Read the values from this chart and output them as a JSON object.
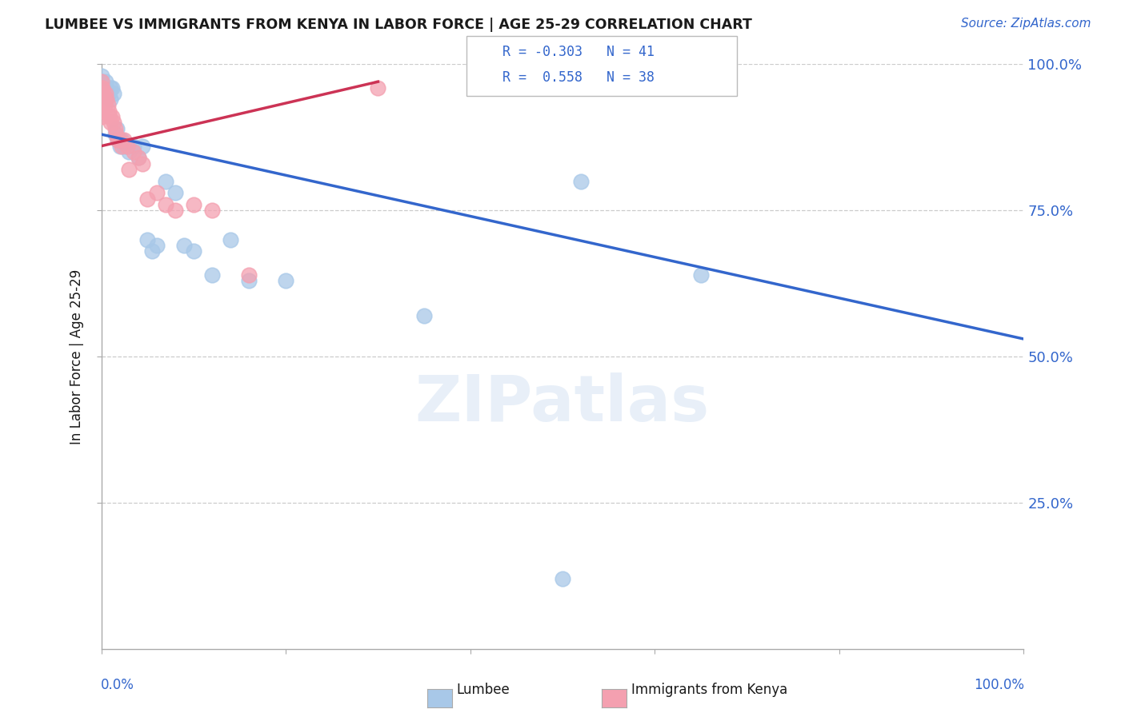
{
  "title": "LUMBEE VS IMMIGRANTS FROM KENYA IN LABOR FORCE | AGE 25-29 CORRELATION CHART",
  "source": "Source: ZipAtlas.com",
  "ylabel": "In Labor Force | Age 25-29",
  "xlim": [
    0.0,
    1.0
  ],
  "ylim": [
    0.0,
    1.0
  ],
  "legend_r_lumbee": "-0.303",
  "legend_n_lumbee": "41",
  "legend_r_kenya": "0.558",
  "legend_n_kenya": "38",
  "lumbee_color": "#a8c8e8",
  "kenya_color": "#f4a0b0",
  "lumbee_line_color": "#3366cc",
  "kenya_line_color": "#cc3355",
  "background_color": "#ffffff",
  "lumbee_scatter": {
    "x": [
      0.0,
      0.0,
      0.0,
      0.0,
      0.0,
      0.0,
      0.003,
      0.004,
      0.005,
      0.006,
      0.008,
      0.01,
      0.01,
      0.012,
      0.013,
      0.015,
      0.017,
      0.018,
      0.02,
      0.022,
      0.025,
      0.028,
      0.03,
      0.035,
      0.04,
      0.045,
      0.05,
      0.055,
      0.06,
      0.07,
      0.08,
      0.09,
      0.1,
      0.12,
      0.14,
      0.16,
      0.2,
      0.35,
      0.5,
      0.52,
      0.65
    ],
    "y": [
      0.97,
      0.96,
      0.97,
      0.98,
      0.96,
      0.95,
      0.96,
      0.95,
      0.97,
      0.96,
      0.95,
      0.96,
      0.94,
      0.96,
      0.95,
      0.88,
      0.89,
      0.87,
      0.86,
      0.87,
      0.86,
      0.86,
      0.85,
      0.86,
      0.84,
      0.86,
      0.7,
      0.68,
      0.69,
      0.8,
      0.78,
      0.69,
      0.68,
      0.64,
      0.7,
      0.63,
      0.63,
      0.57,
      0.12,
      0.8,
      0.64
    ]
  },
  "kenya_scatter": {
    "x": [
      0.0,
      0.0,
      0.0,
      0.0,
      0.0,
      0.0,
      0.0,
      0.001,
      0.002,
      0.003,
      0.004,
      0.005,
      0.006,
      0.007,
      0.008,
      0.009,
      0.01,
      0.012,
      0.013,
      0.015,
      0.016,
      0.018,
      0.02,
      0.022,
      0.025,
      0.028,
      0.03,
      0.035,
      0.04,
      0.045,
      0.05,
      0.06,
      0.07,
      0.08,
      0.1,
      0.12,
      0.16,
      0.3
    ],
    "y": [
      0.97,
      0.96,
      0.95,
      0.94,
      0.93,
      0.92,
      0.91,
      0.96,
      0.95,
      0.94,
      0.93,
      0.95,
      0.94,
      0.93,
      0.92,
      0.91,
      0.9,
      0.91,
      0.9,
      0.89,
      0.88,
      0.87,
      0.87,
      0.86,
      0.87,
      0.86,
      0.82,
      0.85,
      0.84,
      0.83,
      0.77,
      0.78,
      0.76,
      0.75,
      0.76,
      0.75,
      0.64,
      0.96
    ]
  },
  "lumbee_line": {
    "x0": 0.0,
    "x1": 1.0,
    "y0": 0.88,
    "y1": 0.53
  },
  "kenya_line": {
    "x0": 0.0,
    "x1": 0.3,
    "y0": 0.86,
    "y1": 0.97
  }
}
